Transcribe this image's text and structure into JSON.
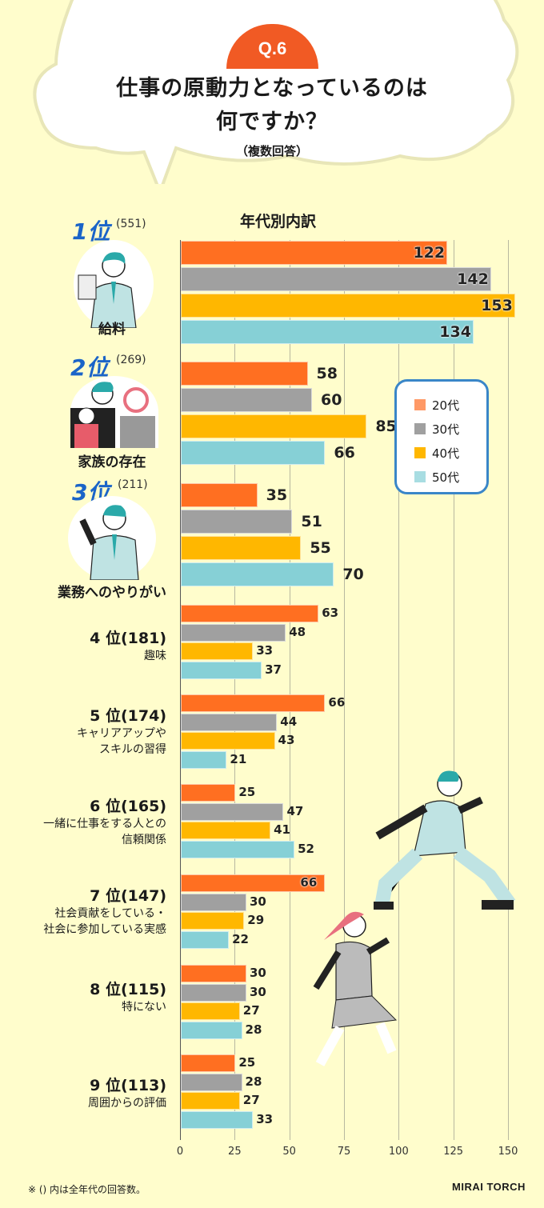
{
  "header": {
    "badge": "Q.6",
    "title_line1": "仕事の原動力となっているのは",
    "title_line2": "何ですか？",
    "subtitle": "（複数回答）"
  },
  "section_title": "年代別内訳",
  "legend": [
    {
      "label": "20代",
      "color": "#ff9966"
    },
    {
      "label": "30代",
      "color": "#a0a0a0"
    },
    {
      "label": "40代",
      "color": "#ffb700"
    },
    {
      "label": "50代",
      "color": "#a8dde2"
    }
  ],
  "bar_colors": [
    "#ff6f21",
    "#a0a0a0",
    "#ffb700",
    "#86d0d6"
  ],
  "ranks": [
    {
      "rank": "1位",
      "count": "(551)",
      "label": "給料"
    },
    {
      "rank": "2位",
      "count": "(269)",
      "label": "家族の存在"
    },
    {
      "rank": "3位",
      "count": "(211)",
      "label": "業務へのやりがい"
    },
    {
      "rank": "4 位",
      "count": "(181)",
      "label": "趣味"
    },
    {
      "rank": "5 位",
      "count": "(174)",
      "label": "キャリアアップや\nスキルの習得"
    },
    {
      "rank": "6 位",
      "count": "(165)",
      "label": "一緒に仕事をする人との\n信頼関係"
    },
    {
      "rank": "7 位",
      "count": "(147)",
      "label": "社会貢献をしている・\n社会に参加している実感"
    },
    {
      "rank": "8 位",
      "count": "(115)",
      "label": "特にない"
    },
    {
      "rank": "9 位",
      "count": "(113)",
      "label": "周囲からの評価"
    }
  ],
  "footnote": "※ () 内は全年代の回答数。",
  "brand": "MIRAI TORCH",
  "chart_data": {
    "type": "bar",
    "orientation": "horizontal",
    "title": "仕事の原動力となっているのは何ですか？（複数回答）",
    "subtitle": "年代別内訳",
    "categories": [
      "給料",
      "家族の存在",
      "業務へのやりがい",
      "趣味",
      "キャリアアップやスキルの習得",
      "一緒に仕事をする人との信頼関係",
      "社会貢献をしている・社会に参加している実感",
      "特にない",
      "周囲からの評価"
    ],
    "totals": [
      551,
      269,
      211,
      181,
      174,
      165,
      147,
      115,
      113
    ],
    "series": [
      {
        "name": "20代",
        "values": [
          122,
          58,
          35,
          63,
          66,
          25,
          66,
          30,
          25
        ]
      },
      {
        "name": "30代",
        "values": [
          142,
          60,
          51,
          48,
          44,
          47,
          30,
          30,
          28
        ]
      },
      {
        "name": "40代",
        "values": [
          153,
          85,
          55,
          33,
          43,
          41,
          29,
          27,
          27
        ]
      },
      {
        "name": "50代",
        "values": [
          134,
          66,
          70,
          37,
          21,
          52,
          22,
          28,
          33
        ]
      }
    ],
    "xlabel": "",
    "ylabel": "",
    "xlim": [
      0,
      150
    ],
    "xticks": [
      0,
      25,
      50,
      75,
      100,
      125,
      150
    ],
    "grid": true,
    "legend_position": "right-inside"
  }
}
